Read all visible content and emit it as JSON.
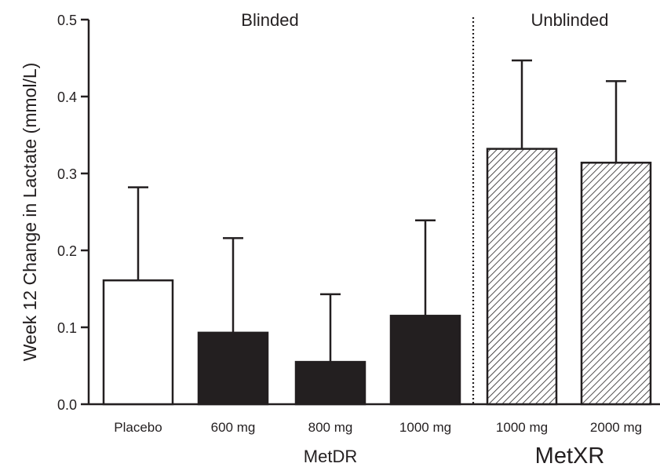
{
  "chart_data": {
    "type": "bar",
    "ylabel": "Week 12 Change in Lactate (mmol/L)",
    "ylim": [
      0,
      0.5
    ],
    "yticks": [
      "0.0",
      "0.1",
      "0.2",
      "0.3",
      "0.4",
      "0.5"
    ],
    "categories": [
      "Placebo",
      "600 mg",
      "800 mg",
      "1000 mg",
      "1000 mg",
      "2000 mg"
    ],
    "values": [
      0.161,
      0.093,
      0.055,
      0.115,
      0.332,
      0.314
    ],
    "error_upper": [
      0.282,
      0.216,
      0.143,
      0.239,
      0.447,
      0.42
    ],
    "fills": [
      "open",
      "solid",
      "solid",
      "solid",
      "hatched",
      "hatched"
    ],
    "section_labels": [
      "Blinded",
      "Unblinded"
    ],
    "group_labels": [
      "MetDR",
      "MetXR"
    ],
    "colors": {
      "ink": "#231f20",
      "open": "#ffffff"
    }
  }
}
